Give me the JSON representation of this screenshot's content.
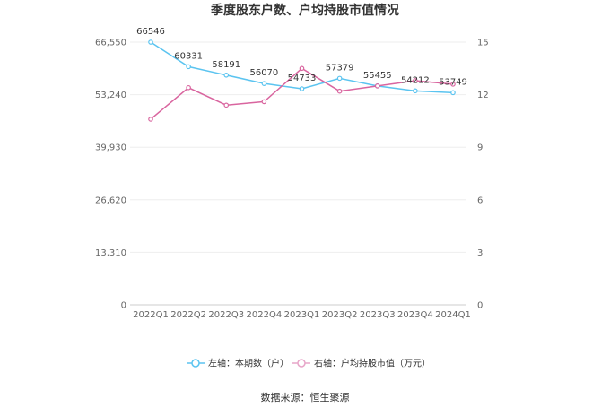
{
  "chart_data": {
    "type": "line",
    "title": "季度股东户数、户均持股市值情况",
    "categories": [
      "2022Q1",
      "2022Q2",
      "2022Q3",
      "2022Q4",
      "2023Q1",
      "2023Q2",
      "2023Q3",
      "2023Q4",
      "2024Q1"
    ],
    "series": [
      {
        "name": "左轴：本期数（户）",
        "axis": "left",
        "color": "#5bc4f0",
        "values": [
          66546,
          60331,
          58191,
          56070,
          54733,
          57379,
          55455,
          54212,
          53749
        ],
        "labels": [
          "66546",
          "60331",
          "58191",
          "56070",
          "54733",
          "57379",
          "55455",
          "54212",
          "53749"
        ]
      },
      {
        "name": "右轴：户均持股市值（万元）",
        "axis": "right",
        "color": "#d9659f",
        "values": [
          10.6,
          12.4,
          11.4,
          11.6,
          13.5,
          12.2,
          12.5,
          12.8,
          12.6
        ]
      }
    ],
    "left_axis": {
      "ticks": [
        "0",
        "13,310",
        "26,620",
        "39,930",
        "53,240",
        "66,550"
      ],
      "max": 66550
    },
    "right_axis": {
      "ticks": [
        "0",
        "3",
        "6",
        "9",
        "12",
        "15"
      ],
      "max": 15
    },
    "grid": true,
    "legend_position": "bottom"
  },
  "source_text": "数据来源：恒生聚源"
}
